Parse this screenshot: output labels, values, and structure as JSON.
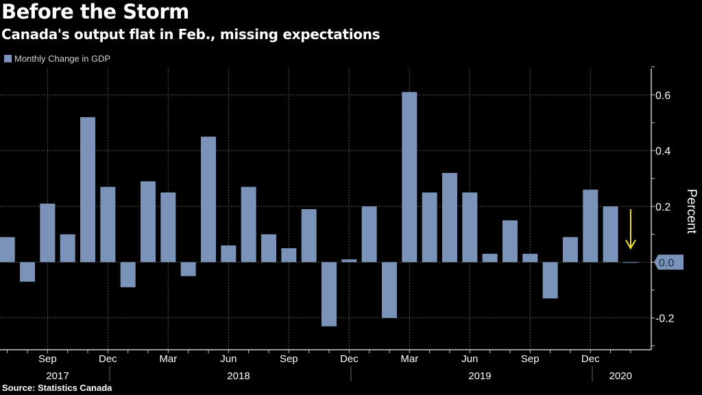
{
  "chart_data": {
    "type": "bar",
    "title": "Before the Storm",
    "subtitle": "Canada's output flat in Feb., missing expectations",
    "legend": [
      {
        "name": "Monthly Change in GDP",
        "color": "#7b93b8"
      }
    ],
    "legend_position": "top-left",
    "source": "Source: Statistics Canada",
    "ylabel": "Percent",
    "ylim": [
      -0.3,
      0.7
    ],
    "y_ticks": [
      "0.6",
      "0.4",
      "0.2",
      "0.0",
      "-0.2"
    ],
    "y_tick_values": [
      0.6,
      0.4,
      0.2,
      0.0,
      -0.2
    ],
    "y_axis_side": "right",
    "last_value_label": "0.0",
    "grid": true,
    "x": [
      "2017-07",
      "2017-08",
      "2017-09",
      "2017-10",
      "2017-11",
      "2017-12",
      "2018-01",
      "2018-02",
      "2018-03",
      "2018-04",
      "2018-05",
      "2018-06",
      "2018-07",
      "2018-08",
      "2018-09",
      "2018-10",
      "2018-11",
      "2018-12",
      "2019-01",
      "2019-02",
      "2019-03",
      "2019-04",
      "2019-05",
      "2019-06",
      "2019-07",
      "2019-08",
      "2019-09",
      "2019-10",
      "2019-11",
      "2019-12",
      "2020-01",
      "2020-02"
    ],
    "series": [
      {
        "name": "Monthly Change in GDP",
        "values": [
          0.09,
          -0.07,
          0.21,
          0.1,
          0.52,
          0.27,
          -0.09,
          0.29,
          0.25,
          -0.05,
          0.45,
          0.06,
          0.27,
          0.1,
          0.05,
          0.19,
          -0.23,
          0.01,
          0.2,
          -0.2,
          0.61,
          0.25,
          0.32,
          0.25,
          0.03,
          0.15,
          0.03,
          -0.13,
          0.09,
          0.26,
          0.2,
          0.0
        ]
      }
    ],
    "x_month_labels": [
      {
        "label": "Sep",
        "month": "2017-09"
      },
      {
        "label": "Dec",
        "month": "2017-12"
      },
      {
        "label": "Mar",
        "month": "2018-03"
      },
      {
        "label": "Jun",
        "month": "2018-06"
      },
      {
        "label": "Sep",
        "month": "2018-09"
      },
      {
        "label": "Dec",
        "month": "2018-12"
      },
      {
        "label": "Mar",
        "month": "2019-03"
      },
      {
        "label": "Jun",
        "month": "2019-06"
      },
      {
        "label": "Sep",
        "month": "2019-09"
      },
      {
        "label": "Dec",
        "month": "2019-12"
      }
    ],
    "x_year_labels": [
      "2017",
      "2018",
      "2019",
      "2020"
    ],
    "annotation": {
      "type": "arrow",
      "direction": "down",
      "color": "#f5e42a",
      "month": "2020-02"
    },
    "bar_color": "#7b93b8"
  }
}
